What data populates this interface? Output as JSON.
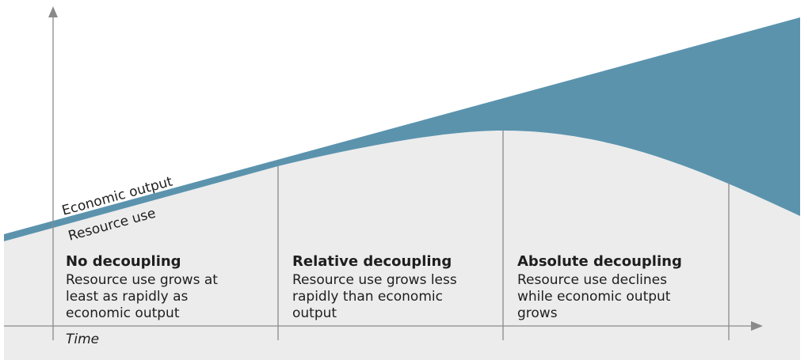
{
  "curve_labels": {
    "economic_output": "Economic output",
    "resource_use": "Resource use"
  },
  "x_axis_label": "Time",
  "sections": [
    {
      "title": "No decoupling",
      "description": [
        "Resource use grows at",
        "least as rapidly as",
        "economic output"
      ]
    },
    {
      "title": "Relative decoupling",
      "description": [
        "Resource use grows less",
        "rapidly than economic",
        "output"
      ]
    },
    {
      "title": "Absolute decoupling",
      "description": [
        "Resource use declines",
        "while economic output",
        "grows"
      ]
    }
  ]
}
